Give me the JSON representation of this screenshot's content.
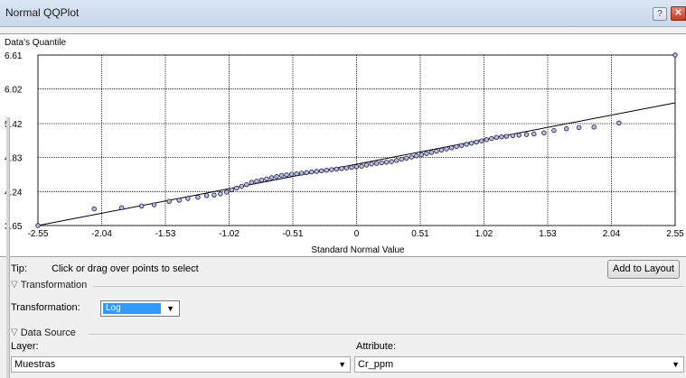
{
  "window": {
    "title": "Normal QQPlot",
    "help_glyph": "?",
    "close_glyph": "✕"
  },
  "chart_data": {
    "type": "scatter",
    "ylabel": "Data's Quantile",
    "xlabel": "Standard Normal Value",
    "xlim": [
      -2.55,
      2.55
    ],
    "ylim": [
      3.65,
      6.61
    ],
    "x_ticks": [
      "-2.55",
      "-2.04",
      "-1.53",
      "-1.02",
      "-0.51",
      "0",
      "0.51",
      "1.02",
      "1.53",
      "2.04",
      "2.55"
    ],
    "y_ticks": [
      "6.61",
      "6.02",
      "5.42",
      "4.83",
      "4.24",
      "3.65"
    ],
    "grid": true,
    "reference_line": {
      "x": [
        -2.55,
        2.55
      ],
      "y": [
        3.65,
        5.78
      ]
    },
    "points": {
      "x": [
        -2.55,
        -2.1,
        -1.88,
        -1.72,
        -1.62,
        -1.5,
        -1.42,
        -1.35,
        -1.27,
        -1.2,
        -1.14,
        -1.09,
        -1.04,
        -1.0,
        -0.96,
        -0.92,
        -0.88,
        -0.84,
        -0.8,
        -0.76,
        -0.72,
        -0.68,
        -0.64,
        -0.6,
        -0.56,
        -0.52,
        -0.48,
        -0.44,
        -0.4,
        -0.36,
        -0.32,
        -0.28,
        -0.24,
        -0.2,
        -0.16,
        -0.12,
        -0.08,
        -0.04,
        0.0,
        0.04,
        0.08,
        0.12,
        0.16,
        0.2,
        0.24,
        0.28,
        0.32,
        0.36,
        0.4,
        0.44,
        0.48,
        0.52,
        0.56,
        0.6,
        0.64,
        0.68,
        0.72,
        0.76,
        0.8,
        0.84,
        0.88,
        0.92,
        0.96,
        1.0,
        1.04,
        1.08,
        1.12,
        1.16,
        1.2,
        1.25,
        1.3,
        1.36,
        1.42,
        1.5,
        1.58,
        1.68,
        1.78,
        1.9,
        2.1,
        2.55
      ],
      "y": [
        3.65,
        3.94,
        3.96,
        3.99,
        4.01,
        4.07,
        4.09,
        4.12,
        4.14,
        4.17,
        4.18,
        4.2,
        4.23,
        4.27,
        4.3,
        4.33,
        4.36,
        4.4,
        4.42,
        4.44,
        4.46,
        4.48,
        4.5,
        4.52,
        4.53,
        4.54,
        4.55,
        4.56,
        4.57,
        4.58,
        4.59,
        4.6,
        4.61,
        4.62,
        4.63,
        4.64,
        4.65,
        4.66,
        4.67,
        4.68,
        4.7,
        4.72,
        4.73,
        4.74,
        4.75,
        4.76,
        4.78,
        4.8,
        4.82,
        4.84,
        4.86,
        4.88,
        4.9,
        4.92,
        4.94,
        4.96,
        4.98,
        5.0,
        5.02,
        5.04,
        5.06,
        5.08,
        5.1,
        5.12,
        5.14,
        5.16,
        5.18,
        5.19,
        5.2,
        5.21,
        5.22,
        5.23,
        5.24,
        5.26,
        5.3,
        5.33,
        5.35,
        5.36,
        5.43,
        6.61
      ]
    }
  },
  "tip": {
    "label": "Tip:",
    "text": "Click or drag over points to select"
  },
  "add_to_layout": "Add to Layout",
  "transformation": {
    "section": "Transformation",
    "label": "Transformation:",
    "value": "Log"
  },
  "data_source": {
    "section": "Data Source",
    "layer_label": "Layer:",
    "layer_value": "Muestras",
    "attribute_label": "Attribute:",
    "attribute_value": "Cr_ppm"
  },
  "icons": {
    "expand": "triangle-down-icon",
    "dropdown": "dropdown-arrow-icon"
  }
}
